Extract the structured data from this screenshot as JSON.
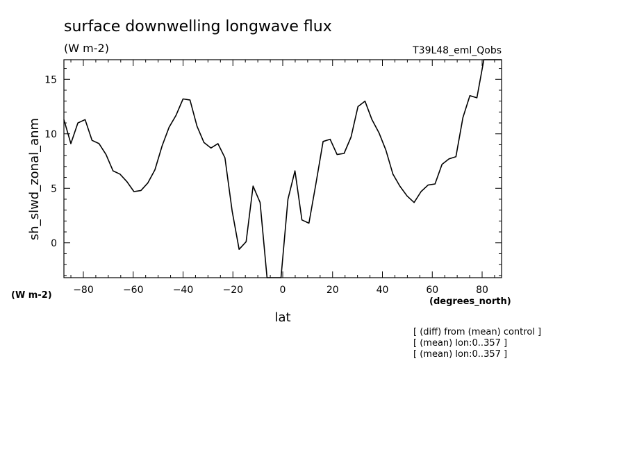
{
  "header": {
    "title": "surface downwelling longwave flux",
    "units": "(W m-2)",
    "run_name": "T39L48_eml_Qobs"
  },
  "axis_labels": {
    "y": "sh_slwd_zonal_anm",
    "y_units": "(W m-2)",
    "x_units": "(degrees_north)",
    "x": "lat"
  },
  "notes": [
    "[ (diff) from (mean) control ]",
    "[ (mean) lon:0..357 ]",
    "[ (mean) lon:0..357 ]"
  ],
  "chart_data": {
    "type": "line",
    "title": "surface downwelling longwave flux",
    "xlabel": "lat",
    "ylabel": "sh_slwd_zonal_anm",
    "xlim": [
      -87.8,
      87.8
    ],
    "ylim": [
      -3.2,
      16.8
    ],
    "xticks": [
      -80,
      -60,
      -40,
      -20,
      0,
      20,
      40,
      60,
      80
    ],
    "yticks": [
      0,
      5,
      10,
      15
    ],
    "grid": false,
    "series": [
      {
        "color": "#000000",
        "x": [
          -87.8,
          -85.0,
          -82.2,
          -79.3,
          -76.5,
          -73.7,
          -70.9,
          -68.1,
          -65.3,
          -62.5,
          -59.7,
          -56.9,
          -54.1,
          -51.3,
          -48.4,
          -45.6,
          -42.8,
          -40.0,
          -37.2,
          -34.4,
          -31.6,
          -28.8,
          -26.0,
          -23.2,
          -20.3,
          -17.5,
          -14.7,
          -11.9,
          -9.1,
          -6.3,
          -3.5,
          -0.7,
          2.1,
          4.9,
          7.7,
          10.5,
          13.3,
          16.2,
          19.0,
          21.8,
          24.6,
          27.4,
          30.2,
          33.0,
          35.8,
          38.6,
          41.4,
          44.2,
          47.0,
          49.9,
          52.7,
          55.5,
          58.3,
          61.1,
          63.9,
          66.7,
          69.5,
          72.3,
          75.1,
          77.9,
          80.7,
          83.5,
          86.4,
          87.8
        ],
        "y": [
          11.3,
          9.1,
          11.0,
          11.3,
          9.4,
          9.1,
          8.1,
          6.6,
          6.3,
          5.6,
          4.7,
          4.8,
          5.5,
          6.7,
          8.9,
          10.6,
          11.7,
          13.2,
          13.1,
          10.7,
          9.2,
          8.7,
          9.1,
          7.8,
          2.9,
          -0.6,
          0.1,
          5.2,
          3.7,
          -3.2,
          -3.2,
          -3.2,
          4.0,
          6.6,
          2.1,
          1.8,
          5.4,
          9.3,
          9.5,
          8.1,
          8.2,
          9.7,
          12.5,
          13.0,
          11.3,
          10.1,
          8.5,
          6.3,
          5.2,
          4.3,
          3.7,
          4.7,
          5.3,
          5.4,
          7.2,
          7.7,
          7.9,
          11.5,
          13.5,
          13.3,
          16.8,
          16.8,
          16.8,
          16.8
        ]
      }
    ]
  }
}
